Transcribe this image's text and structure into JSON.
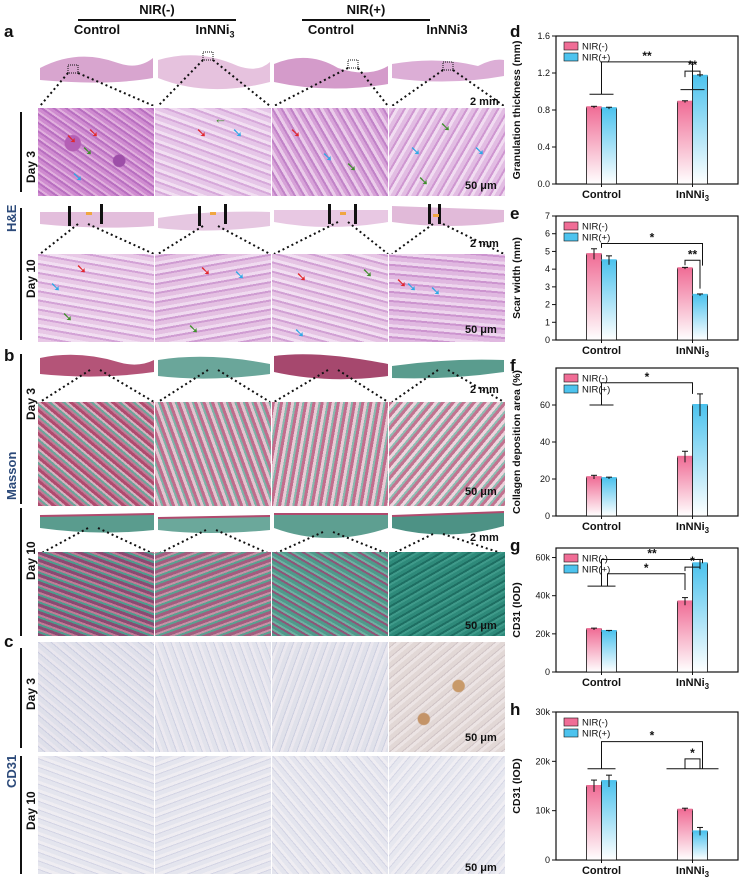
{
  "panel_letters": {
    "a": "a",
    "b": "b",
    "c": "c",
    "d": "d",
    "e": "e",
    "f": "f",
    "g": "g",
    "h": "h"
  },
  "group_headers": {
    "neg": "NIR(-)",
    "pos": "NIR(+)"
  },
  "column_headers": [
    "Control",
    "InNNi3",
    "Control",
    "InNNi3"
  ],
  "stains": {
    "he": "H&E",
    "masson": "Masson",
    "cd31": "CD31"
  },
  "days": {
    "d3": "Day 3",
    "d10": "Day 10"
  },
  "scales": {
    "mm": "2 mm",
    "um": "50 μm"
  },
  "colors": {
    "nir_neg": "#f06d96",
    "nir_pos": "#4dc3ee",
    "he_tissue": "#c98bc7",
    "masson_red": "#b04a6e",
    "masson_green": "#3e9a8c",
    "cd31_bg": "#dfe0ea",
    "arrow_red": "#e0262d",
    "arrow_blue": "#2ea8e6",
    "arrow_green": "#3f8f2c"
  },
  "legend": {
    "neg": "NIR(-)",
    "pos": "NIR(+)"
  },
  "chart_data": [
    {
      "panel": "d",
      "type": "bar",
      "categories": [
        "Control",
        "InNNi3"
      ],
      "series": [
        {
          "name": "NIR(-)",
          "values": [
            0.83,
            0.89
          ],
          "errors": [
            0.01,
            0.01
          ]
        },
        {
          "name": "NIR(+)",
          "values": [
            0.82,
            1.17
          ],
          "errors": [
            0.01,
            0.01
          ]
        }
      ],
      "ylabel": "Granulation thickness (mm)",
      "ylim": [
        0,
        1.6
      ],
      "yticks": [
        "0.0",
        "0.4",
        "0.8",
        "1.2",
        "1.6"
      ],
      "significance": [
        "**",
        "**"
      ]
    },
    {
      "panel": "e",
      "type": "bar",
      "categories": [
        "Control",
        "InNNi3"
      ],
      "series": [
        {
          "name": "NIR(-)",
          "values": [
            4.85,
            4.05
          ],
          "errors": [
            0.3,
            0.05
          ]
        },
        {
          "name": "NIR(+)",
          "values": [
            4.5,
            2.55
          ],
          "errors": [
            0.25,
            0.05
          ]
        }
      ],
      "ylabel": "Scar width (mm)",
      "ylim": [
        0,
        7
      ],
      "yticks": [
        "0",
        "1",
        "2",
        "3",
        "4",
        "5",
        "6",
        "7"
      ],
      "significance": [
        "*",
        "**"
      ]
    },
    {
      "panel": "f",
      "type": "bar",
      "categories": [
        "Control",
        "InNNi3"
      ],
      "series": [
        {
          "name": "NIR(-)",
          "values": [
            21,
            32
          ],
          "errors": [
            1,
            3
          ]
        },
        {
          "name": "NIR(+)",
          "values": [
            20.5,
            60
          ],
          "errors": [
            0.5,
            6
          ]
        }
      ],
      "ylabel": "Collagen deposition area (%)",
      "ylim": [
        0,
        80
      ],
      "yticks": [
        "0",
        "20",
        "40",
        "60"
      ],
      "significance": [
        "*"
      ]
    },
    {
      "panel": "g",
      "type": "bar",
      "categories": [
        "Control",
        "InNNi3"
      ],
      "series": [
        {
          "name": "NIR(-)",
          "values": [
            22500,
            37000
          ],
          "errors": [
            500,
            2000
          ]
        },
        {
          "name": "NIR(+)",
          "values": [
            21500,
            57000
          ],
          "errors": [
            300,
            2000
          ]
        }
      ],
      "ylabel": "CD31 (IOD)",
      "ylim": [
        0,
        65000
      ],
      "yticks": [
        "0",
        "20k",
        "40k",
        "60k"
      ],
      "significance": [
        "**",
        "*",
        "*"
      ]
    },
    {
      "panel": "h",
      "type": "bar",
      "categories": [
        "Control",
        "InNNi3"
      ],
      "series": [
        {
          "name": "NIR(-)",
          "values": [
            15000,
            10200
          ],
          "errors": [
            1200,
            300
          ]
        },
        {
          "name": "NIR(+)",
          "values": [
            16000,
            5800
          ],
          "errors": [
            1200,
            800
          ]
        }
      ],
      "ylabel": "CD31 (IOD)",
      "ylim": [
        0,
        30000
      ],
      "yticks": [
        "0",
        "10k",
        "20k",
        "30k"
      ],
      "significance": [
        "*",
        "*"
      ]
    }
  ]
}
